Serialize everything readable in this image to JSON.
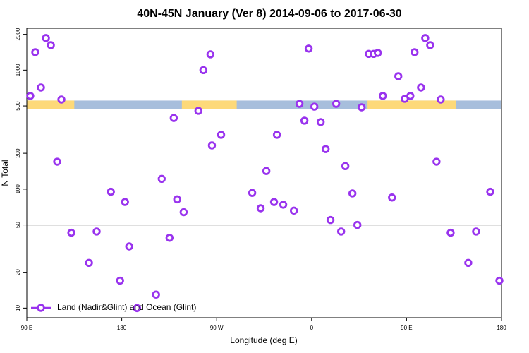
{
  "chart_data": {
    "type": "scatter",
    "title": "40N-45N January (Ver 8)   2014-09-06 to 2017-06-30",
    "x_label": "Longitude (deg E)",
    "y_label": "N Total",
    "log_y": true,
    "xlim": [
      90,
      540
    ],
    "ylim": [
      8.3,
      2250
    ],
    "xticks": [
      {
        "value": 90,
        "label": "90 E"
      },
      {
        "value": 180,
        "label": "180"
      },
      {
        "value": 270,
        "label": "90 W"
      },
      {
        "value": 360,
        "label": "0"
      },
      {
        "value": 450,
        "label": "90 E"
      },
      {
        "value": 540,
        "label": "180"
      }
    ],
    "yticks": [
      10,
      20,
      50,
      100,
      200,
      500,
      1000,
      2000
    ],
    "hlines": [
      50
    ],
    "band": {
      "ylim": [
        470,
        555
      ],
      "ocean_color": "#a7bedc",
      "land_color": "#fdd979",
      "land": [
        [
          90,
          135
        ],
        [
          237,
          289
        ],
        [
          413,
          497
        ]
      ]
    },
    "legend": "bottom-left",
    "series": [
      {
        "name": "Land (Nadir&Glint) and Ocean (Glint)",
        "color": "#9933ee",
        "x": [
          93.3,
          98.0,
          103.4,
          108.1,
          112.8,
          118.8,
          122.8,
          132.2,
          148.9,
          156.2,
          169.7,
          178.4,
          183.1,
          187.1,
          194.5,
          212.5,
          217.9,
          225.3,
          229.3,
          232.6,
          238.7,
          252.7,
          257.4,
          264.1,
          265.5,
          274.2,
          303.7,
          311.7,
          317.1,
          324.4,
          327.1,
          333.1,
          343.2,
          348.5,
          353.2,
          357.2,
          362.6,
          368.6,
          373.3,
          377.9,
          383.3,
          388.0,
          392.0,
          398.7,
          403.4,
          407.4,
          414.1,
          418.8,
          422.8,
          427.5,
          436.2,
          442.2,
          448.3,
          453.6,
          457.6,
          463.7,
          467.7,
          472.4,
          478.4,
          482.4,
          491.8,
          508.5,
          515.9,
          529.3,
          538.0
        ],
        "values": [
          607,
          1416,
          714,
          1862,
          1622,
          170,
          566,
          43,
          24,
          44,
          95,
          17,
          78,
          33,
          10,
          13,
          122,
          39,
          396,
          82,
          64,
          455,
          1000,
          1358,
          233,
          286,
          93,
          69,
          142,
          78,
          286,
          74,
          66,
          521,
          376,
          1517,
          493,
          366,
          217,
          55,
          521,
          44,
          156,
          92,
          50,
          487,
          1370,
          1370,
          1396,
          607,
          85,
          889,
          574,
          607,
          1416,
          714,
          1862,
          1622,
          170,
          566,
          43,
          24,
          44,
          95,
          17
        ]
      }
    ]
  }
}
